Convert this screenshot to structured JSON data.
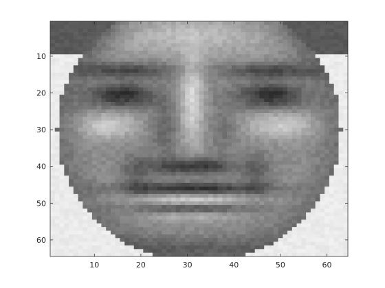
{
  "figure": {
    "type": "grayscale-image",
    "description_visible_text_only": true,
    "colors": {
      "background": "#ffffff",
      "axis": "#262626"
    }
  },
  "chart_data": {
    "type": "heatmap",
    "colormap": "gray",
    "grid": false,
    "image_size": [
      64,
      64
    ],
    "xlim": [
      0.5,
      64.5
    ],
    "ylim": [
      64.5,
      0.5
    ],
    "y_axis_reversed": true,
    "xticks": [
      10,
      20,
      30,
      40,
      50,
      60
    ],
    "yticks": [
      10,
      20,
      30,
      40,
      50,
      60
    ],
    "xtick_labels": [
      "10",
      "20",
      "30",
      "40",
      "50",
      "60"
    ],
    "ytick_labels": [
      "10",
      "20",
      "30",
      "40",
      "50",
      "60"
    ]
  }
}
